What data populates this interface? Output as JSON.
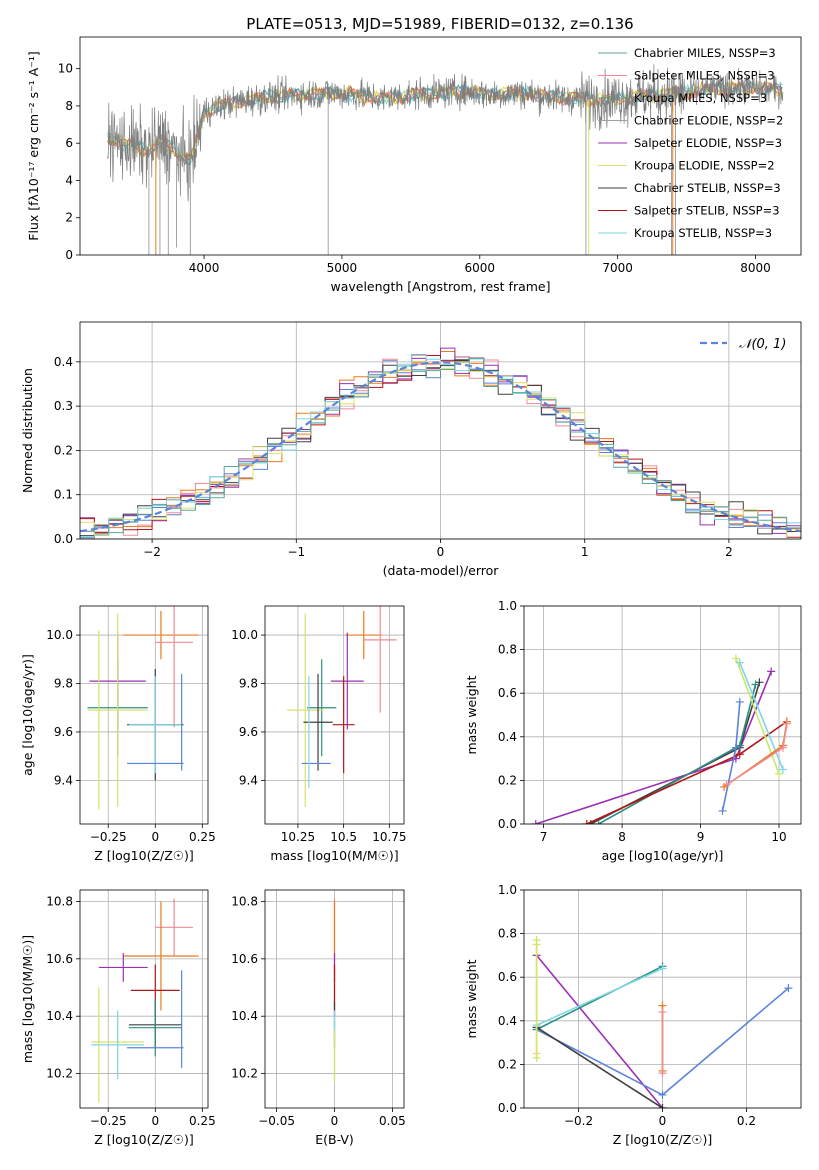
{
  "page": {
    "title": "PLATE=0513, MJD=51989, FIBERID=0132, z=0.136"
  },
  "colors": {
    "Chabrier MILES": "#5aa89a",
    "Salpeter MILES": "#f08a93",
    "Kroupa MILES": "#4e9a8f",
    "Chabrier ELODIE": "#a0a0a0",
    "Salpeter ELODIE": "#9b30b5",
    "Kroupa ELODIE": "#dde06a",
    "Chabrier STELIB": "#404040",
    "Salpeter STELIB": "#b01818",
    "Kroupa STELIB": "#7fd6e4",
    "blue": "#5b84d8",
    "orange": "#ea7a1e",
    "grey": "#7f7f7f",
    "lime": "#c8e86a",
    "teal": "#2f8f84"
  },
  "chart_data": [
    {
      "id": "spectrum",
      "type": "line",
      "title": "PLATE=0513, MJD=51989, FIBERID=0132, z=0.136",
      "xlabel": "wavelength [Angstrom, rest frame]",
      "ylabel": "Flux [fλ10⁻¹⁷ erg cm⁻² s⁻¹ A⁻¹]",
      "xlim": [
        3100,
        8330
      ],
      "ylim": [
        0,
        11.7
      ],
      "xticks": [
        4000,
        5000,
        6000,
        7000,
        8000
      ],
      "yticks": [
        0,
        2,
        4,
        6,
        8,
        10
      ],
      "data_range": [
        3300,
        8200
      ],
      "envelope_x": [
        3300,
        3400,
        3500,
        3600,
        3700,
        3800,
        3900,
        4000,
        4100,
        4300,
        4500,
        4700,
        4900,
        5100,
        5300,
        5500,
        5700,
        5900,
        6100,
        6300,
        6500,
        6700,
        6900,
        7100,
        7300,
        7500,
        7700,
        7900,
        8100,
        8200
      ],
      "envelope_y": [
        6.3,
        6.0,
        5.8,
        5.6,
        6.2,
        5.5,
        5.0,
        7.6,
        8.0,
        8.3,
        8.5,
        8.6,
        8.7,
        8.6,
        8.4,
        8.6,
        8.7,
        8.8,
        8.6,
        8.7,
        8.5,
        8.4,
        8.3,
        8.5,
        8.6,
        8.7,
        8.9,
        9.0,
        8.9,
        8.8
      ],
      "legend": [
        {
          "label": "Chabrier MILES, NSSP=3",
          "color": "#5aa89a"
        },
        {
          "label": "Salpeter MILES, NSSP=3",
          "color": "#f08a93"
        },
        {
          "label": "Kroupa MILES, NSSP=3",
          "color": "#4e9a8f"
        },
        {
          "label": "Chabrier ELODIE, NSSP=2",
          "color": "#a0a0a0"
        },
        {
          "label": "Salpeter ELODIE, NSSP=3",
          "color": "#9b30b5"
        },
        {
          "label": "Kroupa ELODIE, NSSP=2",
          "color": "#dde06a"
        },
        {
          "label": "Chabrier STELIB, NSSP=3",
          "color": "#404040"
        },
        {
          "label": "Salpeter STELIB, NSSP=3",
          "color": "#b01818"
        },
        {
          "label": "Kroupa STELIB, NSSP=3",
          "color": "#7fd6e4"
        }
      ],
      "legend_placement": "upper-right"
    },
    {
      "id": "residuals",
      "type": "line",
      "xlabel": "(data-model)/error",
      "ylabel": "Normed distribution",
      "xlim": [
        -2.5,
        2.5
      ],
      "ylim": [
        0,
        0.49
      ],
      "xticks": [
        -2,
        -1,
        0,
        1,
        2
      ],
      "yticks": [
        0.0,
        0.1,
        0.2,
        0.3,
        0.4
      ],
      "grid": true,
      "legend": [
        {
          "label": "𝒩(0, 1)",
          "color": "#5b84d8"
        }
      ],
      "legend_placement": "upper-right",
      "gaussian": {
        "mean": 0,
        "sigma": 1
      }
    },
    {
      "id": "age_vs_Z",
      "type": "scatter",
      "xlabel": "Z [log10(Z/Z☉)]",
      "ylabel": "age  [log10(age/yr)]",
      "xlim": [
        -0.4,
        0.28
      ],
      "ylim": [
        9.22,
        10.12
      ],
      "xticks": [
        -0.25,
        0.0,
        0.25
      ],
      "yticks": [
        9.4,
        9.6,
        9.8,
        10.0
      ],
      "grid": true,
      "points": [
        {
          "x": 0.03,
          "y": 10.0,
          "xerr": 0.2,
          "yerr": 0.1,
          "color": "#ea7a1e"
        },
        {
          "x": 0.1,
          "y": 9.97,
          "xerr": 0.1,
          "yerr": 0.35,
          "color": "#f08a93"
        },
        {
          "x": -0.2,
          "y": 9.81,
          "xerr": 0.15,
          "yerr": 0.2,
          "color": "#9b30b5"
        },
        {
          "x": -0.2,
          "y": 9.7,
          "xerr": 0.16,
          "yerr": 0.2,
          "color": "#2f8f84"
        },
        {
          "x": -0.2,
          "y": 9.69,
          "xerr": 0.16,
          "yerr": 0.4,
          "color": "#dde06a"
        },
        {
          "x": 0.0,
          "y": 9.63,
          "xerr": 0.15,
          "yerr": 0.23,
          "color": "#404040"
        },
        {
          "x": 0.0,
          "y": 9.63,
          "xerr": 0.14,
          "yerr": 0.2,
          "color": "#7fd6e4"
        },
        {
          "x": 0.0,
          "y": 9.47,
          "xerr": 0.15,
          "yerr": 0.0,
          "color": "#5b84d8"
        },
        {
          "x": 0.14,
          "y": 9.64,
          "xerr": 0.0,
          "yerr": 0.2,
          "color": "#5b84d8"
        },
        {
          "x": -0.3,
          "y": 9.65,
          "xerr": 0.0,
          "yerr": 0.37,
          "color": "#c8e86a"
        }
      ]
    },
    {
      "id": "age_vs_mass",
      "type": "scatter",
      "xlabel": "mass [log10(M/M☉)]",
      "ylabel": "",
      "xlim": [
        10.07,
        10.83
      ],
      "ylim": [
        9.22,
        10.12
      ],
      "xticks": [
        10.25,
        10.5,
        10.75
      ],
      "yticks": [
        9.4,
        9.6,
        9.8,
        10.0
      ],
      "grid": true,
      "points": [
        {
          "x": 10.61,
          "y": 10.0,
          "xerr": 0.1,
          "yerr": 0.1,
          "color": "#ea7a1e"
        },
        {
          "x": 10.7,
          "y": 9.98,
          "xerr": 0.09,
          "yerr": 0.3,
          "color": "#f08a93"
        },
        {
          "x": 10.52,
          "y": 9.81,
          "xerr": 0.09,
          "yerr": 0.2,
          "color": "#9b30b5"
        },
        {
          "x": 10.38,
          "y": 9.7,
          "xerr": 0.08,
          "yerr": 0.2,
          "color": "#2f8f84"
        },
        {
          "x": 10.29,
          "y": 9.69,
          "xerr": 0.1,
          "yerr": 0.4,
          "color": "#dde06a"
        },
        {
          "x": 10.36,
          "y": 9.64,
          "xerr": 0.08,
          "yerr": 0.2,
          "color": "#404040"
        },
        {
          "x": 10.5,
          "y": 9.63,
          "xerr": 0.06,
          "yerr": 0.2,
          "color": "#b01818"
        },
        {
          "x": 10.35,
          "y": 9.47,
          "xerr": 0.08,
          "yerr": 0.0,
          "color": "#5b84d8"
        },
        {
          "x": 10.31,
          "y": 9.6,
          "xerr": 0.0,
          "yerr": 0.23,
          "color": "#7fd6e4"
        }
      ]
    },
    {
      "id": "weight_vs_age",
      "type": "line",
      "xlabel": "age  [log10(age/yr)]",
      "ylabel": "mass weight",
      "xlim": [
        6.75,
        10.28
      ],
      "ylim": [
        0,
        1.0
      ],
      "xticks": [
        7,
        8,
        9,
        10
      ],
      "yticks": [
        0.0,
        0.2,
        0.4,
        0.6,
        0.8,
        1.0
      ],
      "grid": true,
      "series": [
        {
          "color": "#9b30b5",
          "x": [
            6.9,
            9.45,
            9.9
          ],
          "y": [
            0.0,
            0.3,
            0.7
          ]
        },
        {
          "color": "#404040",
          "x": [
            7.6,
            9.5,
            9.75
          ],
          "y": [
            0.0,
            0.35,
            0.65
          ]
        },
        {
          "color": "#2f8f84",
          "x": [
            7.7,
            9.5,
            9.7
          ],
          "y": [
            0.0,
            0.36,
            0.64
          ]
        },
        {
          "color": "#b01818",
          "x": [
            7.55,
            9.5,
            10.1
          ],
          "y": [
            0.0,
            0.32,
            0.47
          ]
        },
        {
          "color": "#5b84d8",
          "x": [
            9.28,
            9.45,
            9.5
          ],
          "y": [
            0.06,
            0.35,
            0.56
          ]
        },
        {
          "color": "#c8e86a",
          "x": [
            9.45,
            10.0
          ],
          "y": [
            0.76,
            0.23
          ]
        },
        {
          "color": "#7fd6e4",
          "x": [
            9.5,
            10.05
          ],
          "y": [
            0.74,
            0.25
          ]
        },
        {
          "color": "#ea7a1e",
          "x": [
            9.3,
            10.05,
            10.1
          ],
          "y": [
            0.17,
            0.36,
            0.47
          ]
        },
        {
          "color": "#f08a93",
          "x": [
            9.33,
            10.05,
            10.1
          ],
          "y": [
            0.18,
            0.35,
            0.46
          ]
        }
      ]
    },
    {
      "id": "mass_vs_Z",
      "type": "scatter",
      "xlabel": "Z [log10(Z/Z☉)]",
      "ylabel": "mass [log10(M/M☉)]",
      "xlim": [
        -0.4,
        0.28
      ],
      "ylim": [
        10.08,
        10.84
      ],
      "xticks": [
        -0.25,
        0.0,
        0.25
      ],
      "yticks": [
        10.2,
        10.4,
        10.6,
        10.8
      ],
      "grid": true,
      "points": [
        {
          "x": 0.1,
          "y": 10.71,
          "xerr": 0.1,
          "yerr": 0.1,
          "color": "#f08a93"
        },
        {
          "x": 0.03,
          "y": 10.61,
          "xerr": 0.2,
          "yerr": 0.19,
          "color": "#ea7a1e"
        },
        {
          "x": -0.17,
          "y": 10.57,
          "xerr": 0.13,
          "yerr": 0.05,
          "color": "#9b30b5"
        },
        {
          "x": 0.0,
          "y": 10.49,
          "xerr": 0.13,
          "yerr": 0.09,
          "color": "#b01818"
        },
        {
          "x": 0.0,
          "y": 10.37,
          "xerr": 0.14,
          "yerr": 0.08,
          "color": "#404040"
        },
        {
          "x": 0.0,
          "y": 10.36,
          "xerr": 0.14,
          "yerr": 0.1,
          "color": "#2f8f84"
        },
        {
          "x": -0.2,
          "y": 10.31,
          "xerr": 0.14,
          "yerr": 0.1,
          "color": "#dde06a"
        },
        {
          "x": -0.2,
          "y": 10.3,
          "xerr": 0.14,
          "yerr": 0.12,
          "color": "#7fd6e4"
        },
        {
          "x": 0.0,
          "y": 10.29,
          "xerr": 0.15,
          "yerr": 0.0,
          "color": "#5b84d8"
        },
        {
          "x": 0.14,
          "y": 10.39,
          "xerr": 0.0,
          "yerr": 0.17,
          "color": "#5b84d8"
        },
        {
          "x": -0.3,
          "y": 10.3,
          "xerr": 0.0,
          "yerr": 0.2,
          "color": "#c8e86a"
        }
      ]
    },
    {
      "id": "mass_vs_EBV",
      "type": "scatter",
      "xlabel": "E(B-V)",
      "ylabel": "",
      "xlim": [
        -0.06,
        0.06
      ],
      "ylim": [
        10.08,
        10.84
      ],
      "xticks": [
        -0.05,
        0.0,
        0.05
      ],
      "yticks": [
        10.2,
        10.4,
        10.6,
        10.8
      ],
      "grid": true,
      "points": [
        {
          "x": 0.0,
          "y": 10.71,
          "xerr": 0.0,
          "yerr": 0.1,
          "color": "#f08a93"
        },
        {
          "x": 0.0,
          "y": 10.61,
          "xerr": 0.0,
          "yerr": 0.19,
          "color": "#ea7a1e"
        },
        {
          "x": 0.0,
          "y": 10.57,
          "xerr": 0.0,
          "yerr": 0.05,
          "color": "#9b30b5"
        },
        {
          "x": 0.0,
          "y": 10.49,
          "xerr": 0.0,
          "yerr": 0.09,
          "color": "#b01818"
        },
        {
          "x": 0.0,
          "y": 10.37,
          "xerr": 0.0,
          "yerr": 0.08,
          "color": "#404040"
        },
        {
          "x": 0.0,
          "y": 10.3,
          "xerr": 0.0,
          "yerr": 0.12,
          "color": "#7fd6e4"
        },
        {
          "x": 0.0,
          "y": 10.26,
          "xerr": 0.0,
          "yerr": 0.09,
          "color": "#dde06a"
        }
      ]
    },
    {
      "id": "weight_vs_Z",
      "type": "line",
      "xlabel": "Z [log10(Z/Z☉)]",
      "ylabel": "mass weight",
      "xlim": [
        -0.33,
        0.33
      ],
      "ylim": [
        0,
        1.0
      ],
      "xticks": [
        -0.2,
        0.0,
        0.2
      ],
      "yticks": [
        0.0,
        0.2,
        0.4,
        0.6,
        0.8,
        1.0
      ],
      "grid": true,
      "series": [
        {
          "color": "#9b30b5",
          "x": [
            -0.3,
            0.0
          ],
          "y": [
            0.7,
            0.0
          ]
        },
        {
          "color": "#5b84d8",
          "x": [
            -0.3,
            0.0,
            0.3
          ],
          "y": [
            0.36,
            0.06,
            0.55
          ]
        },
        {
          "color": "#2f8f84",
          "x": [
            -0.3,
            0.0
          ],
          "y": [
            0.36,
            0.65
          ]
        },
        {
          "color": "#7fd6e4",
          "x": [
            -0.3,
            0.0
          ],
          "y": [
            0.38,
            0.64
          ]
        },
        {
          "color": "#404040",
          "x": [
            -0.3,
            0.0
          ],
          "y": [
            0.37,
            0.0
          ]
        },
        {
          "color": "#c8e86a",
          "x": [
            -0.3,
            -0.3
          ],
          "y": [
            0.23,
            0.77
          ]
        },
        {
          "color": "#dde06a",
          "x": [
            -0.3,
            -0.3
          ],
          "y": [
            0.25,
            0.75
          ]
        },
        {
          "color": "#ea7a1e",
          "x": [
            0.0,
            0.0
          ],
          "y": [
            0.17,
            0.47
          ]
        },
        {
          "color": "#f08a93",
          "x": [
            0.0,
            0.0
          ],
          "y": [
            0.16,
            0.44
          ]
        }
      ]
    }
  ]
}
